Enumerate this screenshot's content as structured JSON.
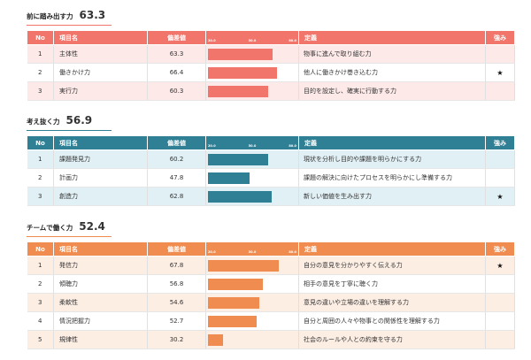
{
  "sections": [
    {
      "title": "前に踏み出す力",
      "score": "63.3",
      "color": "#f1756b",
      "row_bg": "#fde9e8",
      "headers": {
        "no": "No",
        "name": "項目名",
        "dev": "偏差値",
        "def": "定義",
        "str": "強み"
      },
      "scale": [
        "20.0",
        "50.0",
        "80.0"
      ],
      "rows": [
        {
          "no": "1",
          "name": "主体性",
          "dev": "63.3",
          "def": "物事に進んで取り組む力",
          "str": ""
        },
        {
          "no": "2",
          "name": "働きかけ力",
          "dev": "66.4",
          "def": "他人に働きかけ巻き込む力",
          "str": "★"
        },
        {
          "no": "3",
          "name": "実行力",
          "dev": "60.3",
          "def": "目的を設定し、確実に行動する力",
          "str": ""
        }
      ]
    },
    {
      "title": "考え抜く力",
      "score": "56.9",
      "color": "#2f7f95",
      "row_bg": "#e1f0f5",
      "headers": {
        "no": "No",
        "name": "項目名",
        "dev": "偏差値",
        "def": "定義",
        "str": "強み"
      },
      "scale": [
        "20.0",
        "50.0",
        "80.0"
      ],
      "rows": [
        {
          "no": "1",
          "name": "課題発見力",
          "dev": "60.2",
          "def": "現状を分析し目的や課題を明らかにする力",
          "str": ""
        },
        {
          "no": "2",
          "name": "計画力",
          "dev": "47.8",
          "def": "課題の解決に向けたプロセスを明らかにし準備する力",
          "str": ""
        },
        {
          "no": "3",
          "name": "創造力",
          "dev": "62.8",
          "def": "新しい価値を生み出す力",
          "str": "★"
        }
      ]
    },
    {
      "title": "チームで働く力",
      "score": "52.4",
      "color": "#f08c4f",
      "row_bg": "#fdeee4",
      "headers": {
        "no": "No",
        "name": "項目名",
        "dev": "偏差値",
        "def": "定義",
        "str": "強み"
      },
      "scale": [
        "20.0",
        "50.0",
        "80.0"
      ],
      "rows": [
        {
          "no": "1",
          "name": "発信力",
          "dev": "67.8",
          "def": "自分の意見を分かりやすく伝える力",
          "str": "★"
        },
        {
          "no": "2",
          "name": "傾聴力",
          "dev": "56.8",
          "def": "相手の意見を丁寧に聴く力",
          "str": ""
        },
        {
          "no": "3",
          "name": "柔軟性",
          "dev": "54.6",
          "def": "意見の違いや立場の違いを理解する力",
          "str": ""
        },
        {
          "no": "4",
          "name": "情況把握力",
          "dev": "52.7",
          "def": "自分と周囲の人々や物事との関係性を理解する力",
          "str": ""
        },
        {
          "no": "5",
          "name": "規律性",
          "dev": "30.2",
          "def": "社会のルールや人との約束を守る力",
          "str": ""
        }
      ]
    }
  ],
  "chart_data": [
    {
      "type": "bar",
      "categories": [
        "主体性",
        "働きかけ力",
        "実行力"
      ],
      "values": [
        63.3,
        66.4,
        60.3
      ],
      "title": "前に踏み出す力 63.3",
      "xlim": [
        20,
        80
      ]
    },
    {
      "type": "bar",
      "categories": [
        "課題発見力",
        "計画力",
        "創造力"
      ],
      "values": [
        60.2,
        47.8,
        62.8
      ],
      "title": "考え抜く力 56.9",
      "xlim": [
        20,
        80
      ]
    },
    {
      "type": "bar",
      "categories": [
        "発信力",
        "傾聴力",
        "柔軟性",
        "情況把握力",
        "規律性"
      ],
      "values": [
        67.8,
        56.8,
        54.6,
        52.7,
        30.2
      ],
      "title": "チームで働く力 52.4",
      "xlim": [
        20,
        80
      ]
    }
  ]
}
